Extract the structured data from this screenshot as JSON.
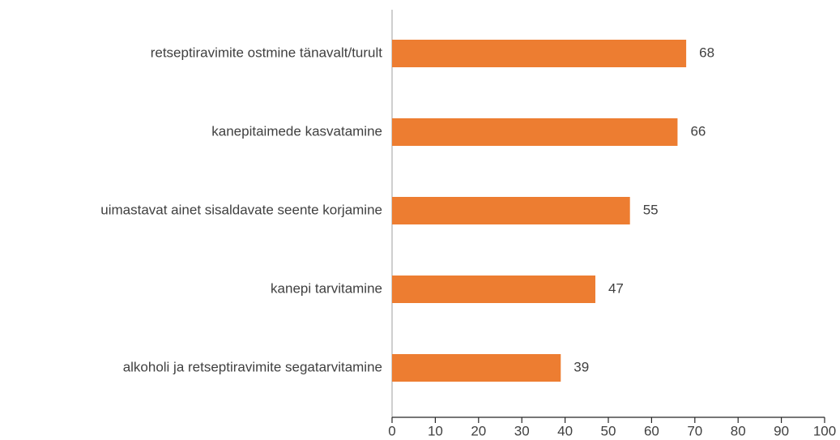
{
  "chart_data": {
    "type": "bar",
    "orientation": "horizontal",
    "categories": [
      "retseptiravimite ostmine tänavalt/turult",
      "kanepitaimede kasvatamine",
      "uimastavat ainet sisaldavate seente korjamine",
      "kanepi tarvitamine",
      "alkoholi ja retseptiravimite segatarvitamine"
    ],
    "values": [
      68,
      66,
      55,
      47,
      39
    ],
    "color": "#ed7d31",
    "xlim": [
      0,
      100
    ],
    "xticks": [
      0,
      10,
      20,
      30,
      40,
      50,
      60,
      70,
      80,
      90,
      100
    ],
    "grid": false
  }
}
